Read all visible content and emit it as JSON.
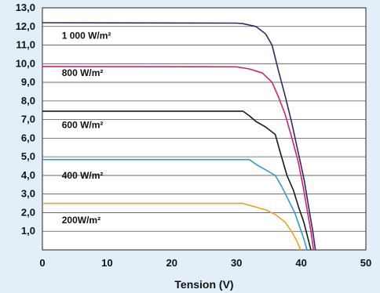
{
  "chart_data": {
    "type": "line",
    "title": "",
    "xlabel": "Tension (V)",
    "ylabel": "",
    "xlim": [
      0,
      50
    ],
    "ylim": [
      0,
      13
    ],
    "xticks": [
      {
        "v": 0,
        "t": "0"
      },
      {
        "v": 10,
        "t": "10"
      },
      {
        "v": 20,
        "t": "20"
      },
      {
        "v": 30,
        "t": "30"
      },
      {
        "v": 40,
        "t": "40"
      },
      {
        "v": 50,
        "t": "50"
      }
    ],
    "yticks": [
      {
        "v": 1,
        "t": "1,0"
      },
      {
        "v": 2,
        "t": "2,0"
      },
      {
        "v": 3,
        "t": "3,0"
      },
      {
        "v": 4,
        "t": "4,0"
      },
      {
        "v": 5,
        "t": "5,0"
      },
      {
        "v": 6,
        "t": "6,0"
      },
      {
        "v": 7,
        "t": "7,0"
      },
      {
        "v": 8,
        "t": "8,0"
      },
      {
        "v": 9,
        "t": "9,0"
      },
      {
        "v": 10,
        "t": "10,0"
      },
      {
        "v": 11,
        "t": "11,0"
      },
      {
        "v": 12,
        "t": "12,0"
      },
      {
        "v": 13,
        "t": "13,0"
      }
    ],
    "grid": "horizontal",
    "series": [
      {
        "name": "1 000 W/m²",
        "color": "#2e2a63",
        "label_x": 3,
        "label_y": 11.5,
        "points": [
          [
            0,
            12.2
          ],
          [
            30,
            12.18
          ],
          [
            31,
            12.15
          ],
          [
            33,
            12.0
          ],
          [
            34.5,
            11.6
          ],
          [
            35.5,
            11.0
          ],
          [
            36.5,
            9.6
          ],
          [
            37.5,
            8.3
          ],
          [
            38.5,
            6.9
          ],
          [
            39.5,
            5.3
          ],
          [
            40.5,
            3.7
          ],
          [
            41.3,
            2.0
          ],
          [
            41.8,
            1.0
          ],
          [
            42.2,
            0
          ]
        ]
      },
      {
        "name": "800 W/m²",
        "color": "#d51f74",
        "label_x": 3,
        "label_y": 9.5,
        "points": [
          [
            0,
            9.85
          ],
          [
            30,
            9.83
          ],
          [
            32,
            9.72
          ],
          [
            34,
            9.5
          ],
          [
            35.5,
            9.0
          ],
          [
            36.5,
            8.2
          ],
          [
            37.5,
            7.3
          ],
          [
            38.5,
            6.1
          ],
          [
            39.5,
            4.8
          ],
          [
            40.3,
            3.4
          ],
          [
            41,
            2.0
          ],
          [
            41.5,
            1.0
          ],
          [
            41.9,
            0
          ]
        ]
      },
      {
        "name": "600 W/m²",
        "color": "#1a1a1a",
        "label_x": 3,
        "label_y": 6.7,
        "points": [
          [
            0,
            7.45
          ],
          [
            31,
            7.45
          ],
          [
            32,
            7.2
          ],
          [
            33,
            6.9
          ],
          [
            34.5,
            6.6
          ],
          [
            36,
            6.2
          ],
          [
            36.8,
            5.2
          ],
          [
            37.8,
            4.0
          ],
          [
            38.8,
            3.2
          ],
          [
            39.6,
            2.3
          ],
          [
            40.4,
            1.5
          ],
          [
            41,
            0.7
          ],
          [
            41.5,
            0
          ]
        ]
      },
      {
        "name": "400 W/m²",
        "color": "#2f9bd7",
        "label_x": 3,
        "label_y": 4.0,
        "points": [
          [
            0,
            4.85
          ],
          [
            32,
            4.85
          ],
          [
            33,
            4.6
          ],
          [
            34.5,
            4.3
          ],
          [
            36,
            4.0
          ],
          [
            37,
            3.4
          ],
          [
            38,
            2.7
          ],
          [
            39,
            2.0
          ],
          [
            39.8,
            1.2
          ],
          [
            40.4,
            0.6
          ],
          [
            40.9,
            0
          ]
        ]
      },
      {
        "name": "200W/m²",
        "color": "#f0a020",
        "label_x": 3,
        "label_y": 1.6,
        "points": [
          [
            0,
            2.5
          ],
          [
            31,
            2.5
          ],
          [
            33,
            2.3
          ],
          [
            34.5,
            2.15
          ],
          [
            36,
            1.9
          ],
          [
            37.5,
            1.5
          ],
          [
            38.5,
            1.0
          ],
          [
            39.3,
            0.5
          ],
          [
            39.9,
            0
          ]
        ]
      }
    ]
  }
}
